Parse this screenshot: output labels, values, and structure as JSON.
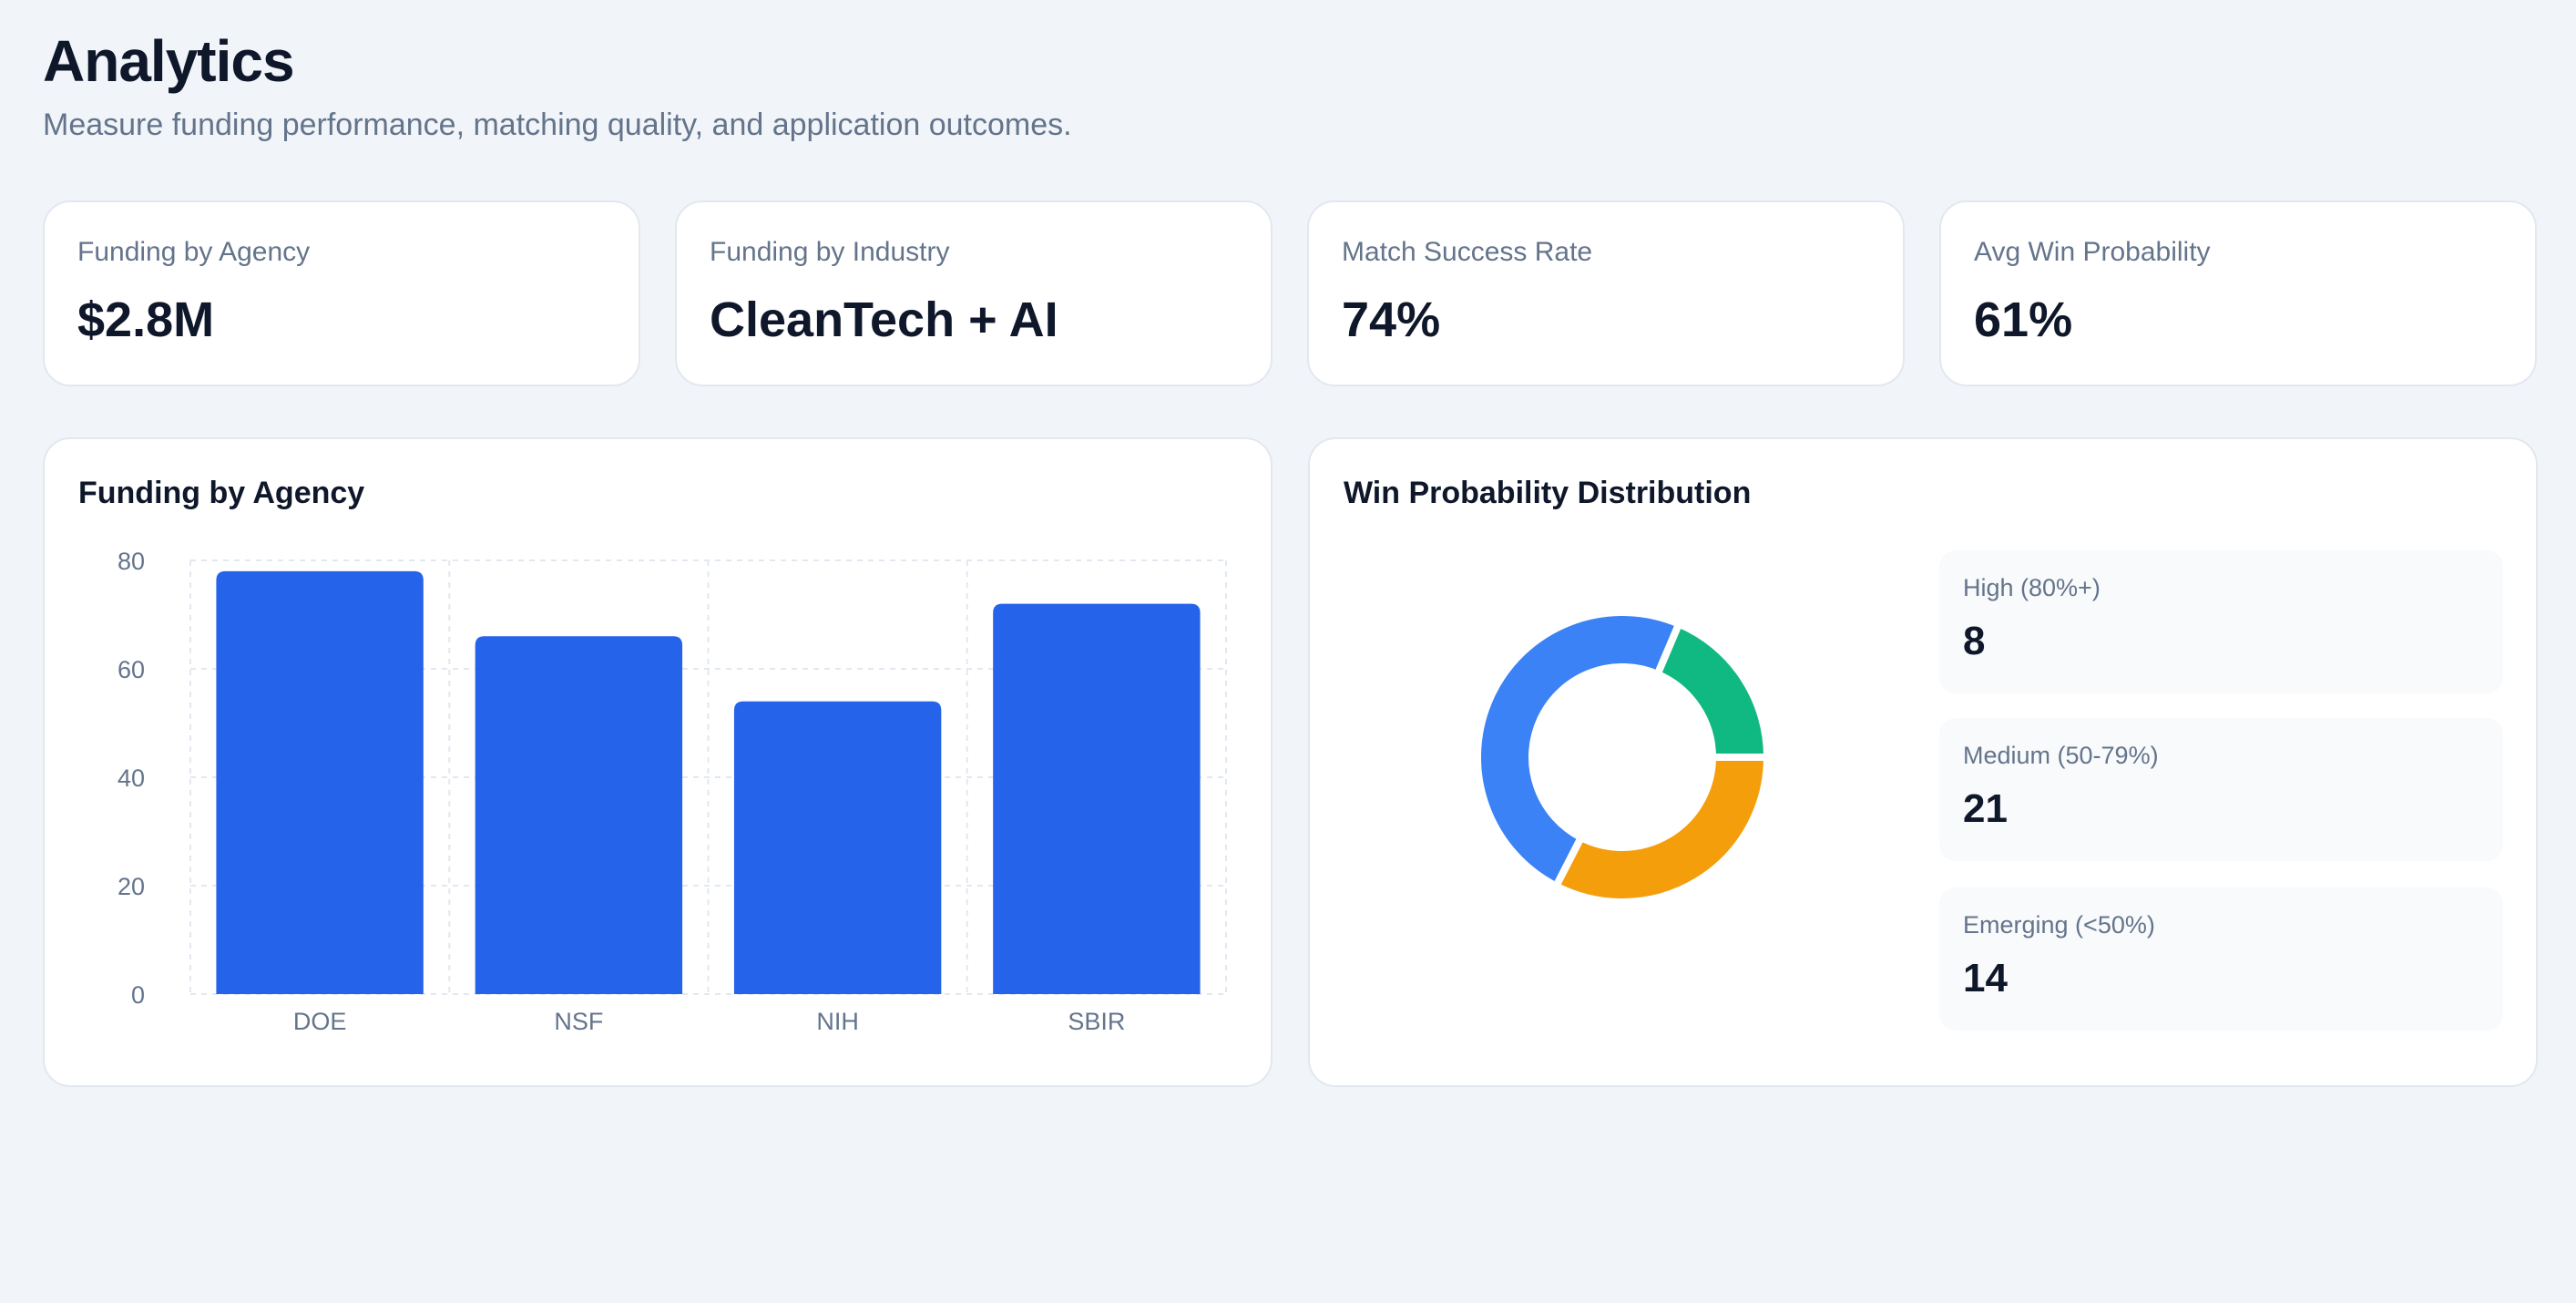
{
  "header": {
    "title": "Analytics",
    "subtitle": "Measure funding performance, matching quality, and application outcomes."
  },
  "stats": [
    {
      "label": "Funding by Agency",
      "value": "$2.8M"
    },
    {
      "label": "Funding by Industry",
      "value": "CleanTech + AI"
    },
    {
      "label": "Match Success Rate",
      "value": "74%"
    },
    {
      "label": "Avg Win Probability",
      "value": "61%"
    }
  ],
  "colors": {
    "bar": "#2563eb",
    "high": "#10b981",
    "medium": "#3b82f6",
    "emerging": "#f59e0b"
  },
  "chart_data": [
    {
      "type": "bar",
      "title": "Funding by Agency",
      "categories": [
        "DOE",
        "NSF",
        "NIH",
        "SBIR"
      ],
      "values": [
        78,
        66,
        54,
        72
      ],
      "ylim": [
        0,
        80
      ],
      "yticks": [
        0,
        20,
        40,
        60,
        80
      ],
      "grid": true,
      "xlabel": "",
      "ylabel": ""
    },
    {
      "type": "pie",
      "variant": "donut",
      "title": "Win Probability Distribution",
      "legend": "right",
      "categories": [
        "High (80%+)",
        "Medium (50-79%)",
        "Emerging (<50%)"
      ],
      "values": [
        8,
        21,
        14
      ]
    }
  ]
}
